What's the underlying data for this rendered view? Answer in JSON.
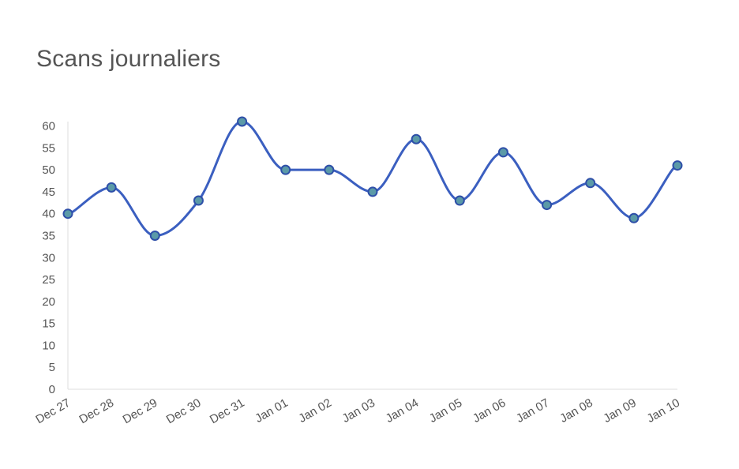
{
  "chart_data": {
    "type": "line",
    "title": "Scans journaliers",
    "xlabel": "",
    "ylabel": "",
    "categories": [
      "Dec 27",
      "Dec 28",
      "Dec 29",
      "Dec 30",
      "Dec 31",
      "Jan 01",
      "Jan 02",
      "Jan 03",
      "Jan 04",
      "Jan 05",
      "Jan 06",
      "Jan 07",
      "Jan 08",
      "Jan 09",
      "Jan 10"
    ],
    "series": [
      {
        "values": [
          40,
          46,
          35,
          43,
          61,
          50,
          50,
          45,
          57,
          43,
          54,
          42,
          47,
          39,
          51
        ]
      }
    ],
    "ylim": [
      0,
      61
    ],
    "yticks": [
      0,
      5,
      10,
      15,
      20,
      25,
      30,
      35,
      40,
      45,
      50,
      55,
      60
    ],
    "grid": false,
    "legend": "none",
    "colors": {
      "line": "#3b5fc0",
      "marker_fill": "#5b9aa8",
      "marker_stroke": "#2e4fa8",
      "axis": "#dddddd"
    }
  }
}
